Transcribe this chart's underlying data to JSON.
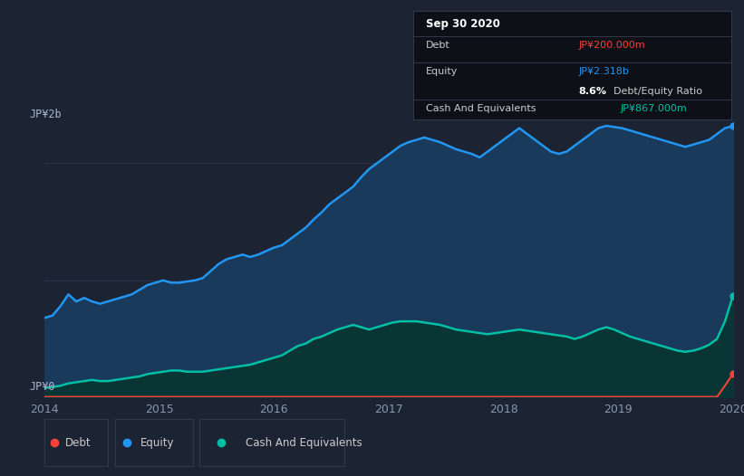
{
  "background_color": "#1c2333",
  "chart_bg": "#1c2333",
  "title": "Sep 30 2020",
  "ylabel_top": "JP¥2b",
  "ylabel_bottom": "JP¥0",
  "x_labels": [
    "2014",
    "2015",
    "2016",
    "2017",
    "2018",
    "2019",
    "2020"
  ],
  "equity_color": "#2196f3",
  "equity_fill": "#1a3a5c",
  "cash_color": "#00bfa5",
  "cash_fill": "#0a3535",
  "debt_color": "#f44336",
  "tooltip_bg": "#0d1117",
  "tooltip_border": "#30384a",
  "debt_label_color": "#f44336",
  "equity_label_color": "#2196f3",
  "cash_label_color": "#00bfa5",
  "grid_color": "#2a3550",
  "legend_border": "#30384a",
  "equity_data": [
    0.68,
    0.7,
    0.78,
    0.88,
    0.82,
    0.85,
    0.82,
    0.8,
    0.82,
    0.84,
    0.86,
    0.88,
    0.92,
    0.96,
    0.98,
    1.0,
    0.98,
    0.98,
    0.99,
    1.0,
    1.02,
    1.08,
    1.14,
    1.18,
    1.2,
    1.22,
    1.2,
    1.22,
    1.25,
    1.28,
    1.3,
    1.35,
    1.4,
    1.45,
    1.52,
    1.58,
    1.65,
    1.7,
    1.75,
    1.8,
    1.88,
    1.95,
    2.0,
    2.05,
    2.1,
    2.15,
    2.18,
    2.2,
    2.22,
    2.2,
    2.18,
    2.15,
    2.12,
    2.1,
    2.08,
    2.05,
    2.1,
    2.15,
    2.2,
    2.25,
    2.3,
    2.25,
    2.2,
    2.15,
    2.1,
    2.08,
    2.1,
    2.15,
    2.2,
    2.25,
    2.3,
    2.32,
    2.31,
    2.3,
    2.28,
    2.26,
    2.24,
    2.22,
    2.2,
    2.18,
    2.16,
    2.14,
    2.16,
    2.18,
    2.2,
    2.25,
    2.3,
    2.318
  ],
  "cash_data": [
    0.08,
    0.09,
    0.1,
    0.12,
    0.13,
    0.14,
    0.15,
    0.14,
    0.14,
    0.15,
    0.16,
    0.17,
    0.18,
    0.2,
    0.21,
    0.22,
    0.23,
    0.23,
    0.22,
    0.22,
    0.22,
    0.23,
    0.24,
    0.25,
    0.26,
    0.27,
    0.28,
    0.3,
    0.32,
    0.34,
    0.36,
    0.4,
    0.44,
    0.46,
    0.5,
    0.52,
    0.55,
    0.58,
    0.6,
    0.62,
    0.6,
    0.58,
    0.6,
    0.62,
    0.64,
    0.65,
    0.65,
    0.65,
    0.64,
    0.63,
    0.62,
    0.6,
    0.58,
    0.57,
    0.56,
    0.55,
    0.54,
    0.55,
    0.56,
    0.57,
    0.58,
    0.57,
    0.56,
    0.55,
    0.54,
    0.53,
    0.52,
    0.5,
    0.52,
    0.55,
    0.58,
    0.6,
    0.58,
    0.55,
    0.52,
    0.5,
    0.48,
    0.46,
    0.44,
    0.42,
    0.4,
    0.39,
    0.4,
    0.42,
    0.45,
    0.5,
    0.65,
    0.867
  ],
  "debt_data": [
    0.005,
    0.005,
    0.005,
    0.005,
    0.005,
    0.005,
    0.005,
    0.005,
    0.005,
    0.005,
    0.005,
    0.005,
    0.005,
    0.005,
    0.005,
    0.005,
    0.005,
    0.005,
    0.005,
    0.005,
    0.005,
    0.005,
    0.005,
    0.005,
    0.005,
    0.005,
    0.005,
    0.005,
    0.005,
    0.005,
    0.005,
    0.005,
    0.005,
    0.005,
    0.005,
    0.005,
    0.005,
    0.005,
    0.005,
    0.005,
    0.005,
    0.005,
    0.005,
    0.005,
    0.005,
    0.005,
    0.005,
    0.005,
    0.005,
    0.005,
    0.005,
    0.005,
    0.005,
    0.005,
    0.005,
    0.005,
    0.005,
    0.005,
    0.005,
    0.005,
    0.005,
    0.005,
    0.005,
    0.005,
    0.005,
    0.005,
    0.005,
    0.005,
    0.005,
    0.005,
    0.005,
    0.005,
    0.005,
    0.005,
    0.005,
    0.005,
    0.005,
    0.005,
    0.005,
    0.005,
    0.005,
    0.005,
    0.005,
    0.005,
    0.005,
    0.005,
    0.1,
    0.2
  ],
  "ylim": [
    0,
    2.5
  ],
  "n_points": 88,
  "figsize": [
    8.21,
    5.26
  ],
  "dpi": 100
}
